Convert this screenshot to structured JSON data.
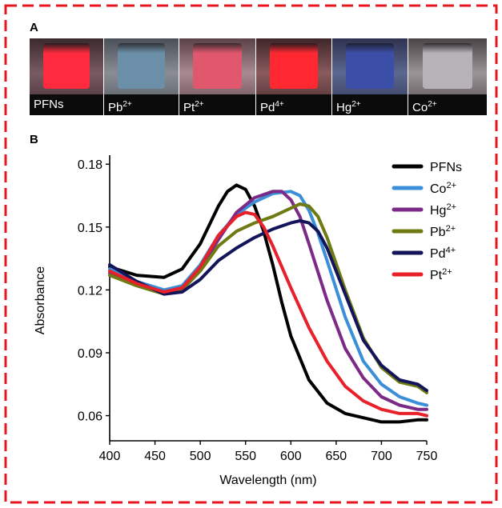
{
  "panels": {
    "a_label": "A",
    "b_label": "B"
  },
  "vials": [
    {
      "name": "PFNs",
      "sup": "",
      "liquid": "#ff2a3d",
      "bg": "#7a5a62",
      "top": "#3a2a2e"
    },
    {
      "name": "Pb",
      "sup": "2+",
      "liquid": "#6b8fa8",
      "bg": "#8a8d94",
      "top": "#4a5058"
    },
    {
      "name": "Pt",
      "sup": "2+",
      "liquid": "#e0576e",
      "bg": "#a98a90",
      "top": "#5a4246"
    },
    {
      "name": "Pd",
      "sup": "4+",
      "liquid": "#ff2830",
      "bg": "#8a5a5e",
      "top": "#3e2628"
    },
    {
      "name": "Hg",
      "sup": "2+",
      "liquid": "#3c4fa8",
      "bg": "#5c6890",
      "top": "#2e3250"
    },
    {
      "name": "Co",
      "sup": "2+",
      "liquid": "#b7b2b8",
      "bg": "#9b9598",
      "top": "#4a4446"
    }
  ],
  "chart_data": {
    "type": "line",
    "xlabel": "Wavelength (nm)",
    "ylabel": "Absorbance",
    "xlim": [
      400,
      750
    ],
    "ylim": [
      0.048,
      0.182
    ],
    "xticks": [
      400,
      450,
      500,
      550,
      600,
      650,
      700,
      750
    ],
    "yticks": [
      0.06,
      0.09,
      0.12,
      0.15,
      0.18
    ],
    "ytick_labels": [
      "0.06",
      "0.09",
      "0.12",
      "0.15",
      "0.18"
    ],
    "legend_position": "top-right",
    "series": [
      {
        "name": "PFNs",
        "sup": "",
        "color": "#000000",
        "points": [
          [
            400,
            0.131
          ],
          [
            430,
            0.127
          ],
          [
            460,
            0.126
          ],
          [
            480,
            0.13
          ],
          [
            500,
            0.142
          ],
          [
            520,
            0.16
          ],
          [
            530,
            0.167
          ],
          [
            540,
            0.17
          ],
          [
            550,
            0.168
          ],
          [
            560,
            0.16
          ],
          [
            570,
            0.148
          ],
          [
            580,
            0.132
          ],
          [
            590,
            0.114
          ],
          [
            600,
            0.098
          ],
          [
            620,
            0.077
          ],
          [
            640,
            0.066
          ],
          [
            660,
            0.061
          ],
          [
            680,
            0.059
          ],
          [
            700,
            0.057
          ],
          [
            720,
            0.057
          ],
          [
            740,
            0.058
          ],
          [
            750,
            0.058
          ]
        ]
      },
      {
        "name": "Co",
        "sup": "2+",
        "color": "#3a8fd8",
        "points": [
          [
            400,
            0.13
          ],
          [
            430,
            0.124
          ],
          [
            460,
            0.12
          ],
          [
            480,
            0.122
          ],
          [
            500,
            0.132
          ],
          [
            520,
            0.146
          ],
          [
            540,
            0.156
          ],
          [
            560,
            0.162
          ],
          [
            580,
            0.166
          ],
          [
            600,
            0.167
          ],
          [
            610,
            0.165
          ],
          [
            620,
            0.158
          ],
          [
            630,
            0.147
          ],
          [
            640,
            0.134
          ],
          [
            660,
            0.107
          ],
          [
            680,
            0.086
          ],
          [
            700,
            0.075
          ],
          [
            720,
            0.069
          ],
          [
            740,
            0.066
          ],
          [
            750,
            0.065
          ]
        ]
      },
      {
        "name": "Hg",
        "sup": "2+",
        "color": "#7b2a86",
        "points": [
          [
            400,
            0.128
          ],
          [
            430,
            0.123
          ],
          [
            460,
            0.119
          ],
          [
            480,
            0.121
          ],
          [
            500,
            0.13
          ],
          [
            520,
            0.144
          ],
          [
            540,
            0.157
          ],
          [
            560,
            0.164
          ],
          [
            580,
            0.167
          ],
          [
            590,
            0.167
          ],
          [
            600,
            0.163
          ],
          [
            610,
            0.155
          ],
          [
            620,
            0.142
          ],
          [
            640,
            0.115
          ],
          [
            660,
            0.092
          ],
          [
            680,
            0.078
          ],
          [
            700,
            0.069
          ],
          [
            720,
            0.065
          ],
          [
            740,
            0.063
          ],
          [
            750,
            0.063
          ]
        ]
      },
      {
        "name": "Pb",
        "sup": "2+",
        "color": "#707a12",
        "points": [
          [
            400,
            0.127
          ],
          [
            430,
            0.122
          ],
          [
            460,
            0.118
          ],
          [
            480,
            0.12
          ],
          [
            500,
            0.129
          ],
          [
            520,
            0.141
          ],
          [
            540,
            0.148
          ],
          [
            560,
            0.152
          ],
          [
            580,
            0.155
          ],
          [
            600,
            0.159
          ],
          [
            610,
            0.161
          ],
          [
            620,
            0.16
          ],
          [
            630,
            0.155
          ],
          [
            640,
            0.145
          ],
          [
            660,
            0.12
          ],
          [
            680,
            0.097
          ],
          [
            700,
            0.083
          ],
          [
            720,
            0.076
          ],
          [
            740,
            0.074
          ],
          [
            750,
            0.071
          ]
        ]
      },
      {
        "name": "Pd",
        "sup": "4+",
        "color": "#14145a",
        "points": [
          [
            400,
            0.132
          ],
          [
            430,
            0.124
          ],
          [
            460,
            0.118
          ],
          [
            480,
            0.119
          ],
          [
            500,
            0.125
          ],
          [
            520,
            0.134
          ],
          [
            540,
            0.14
          ],
          [
            560,
            0.145
          ],
          [
            580,
            0.149
          ],
          [
            600,
            0.152
          ],
          [
            610,
            0.153
          ],
          [
            620,
            0.152
          ],
          [
            630,
            0.148
          ],
          [
            640,
            0.14
          ],
          [
            660,
            0.118
          ],
          [
            680,
            0.096
          ],
          [
            700,
            0.084
          ],
          [
            720,
            0.077
          ],
          [
            740,
            0.075
          ],
          [
            750,
            0.072
          ]
        ]
      },
      {
        "name": "Pt",
        "sup": "2+",
        "color": "#e8202a",
        "points": [
          [
            400,
            0.129
          ],
          [
            430,
            0.123
          ],
          [
            460,
            0.119
          ],
          [
            480,
            0.121
          ],
          [
            500,
            0.131
          ],
          [
            520,
            0.146
          ],
          [
            540,
            0.155
          ],
          [
            550,
            0.157
          ],
          [
            560,
            0.156
          ],
          [
            570,
            0.15
          ],
          [
            580,
            0.141
          ],
          [
            600,
            0.121
          ],
          [
            620,
            0.102
          ],
          [
            640,
            0.086
          ],
          [
            660,
            0.074
          ],
          [
            680,
            0.067
          ],
          [
            700,
            0.063
          ],
          [
            720,
            0.061
          ],
          [
            740,
            0.061
          ],
          [
            750,
            0.06
          ]
        ]
      }
    ]
  }
}
